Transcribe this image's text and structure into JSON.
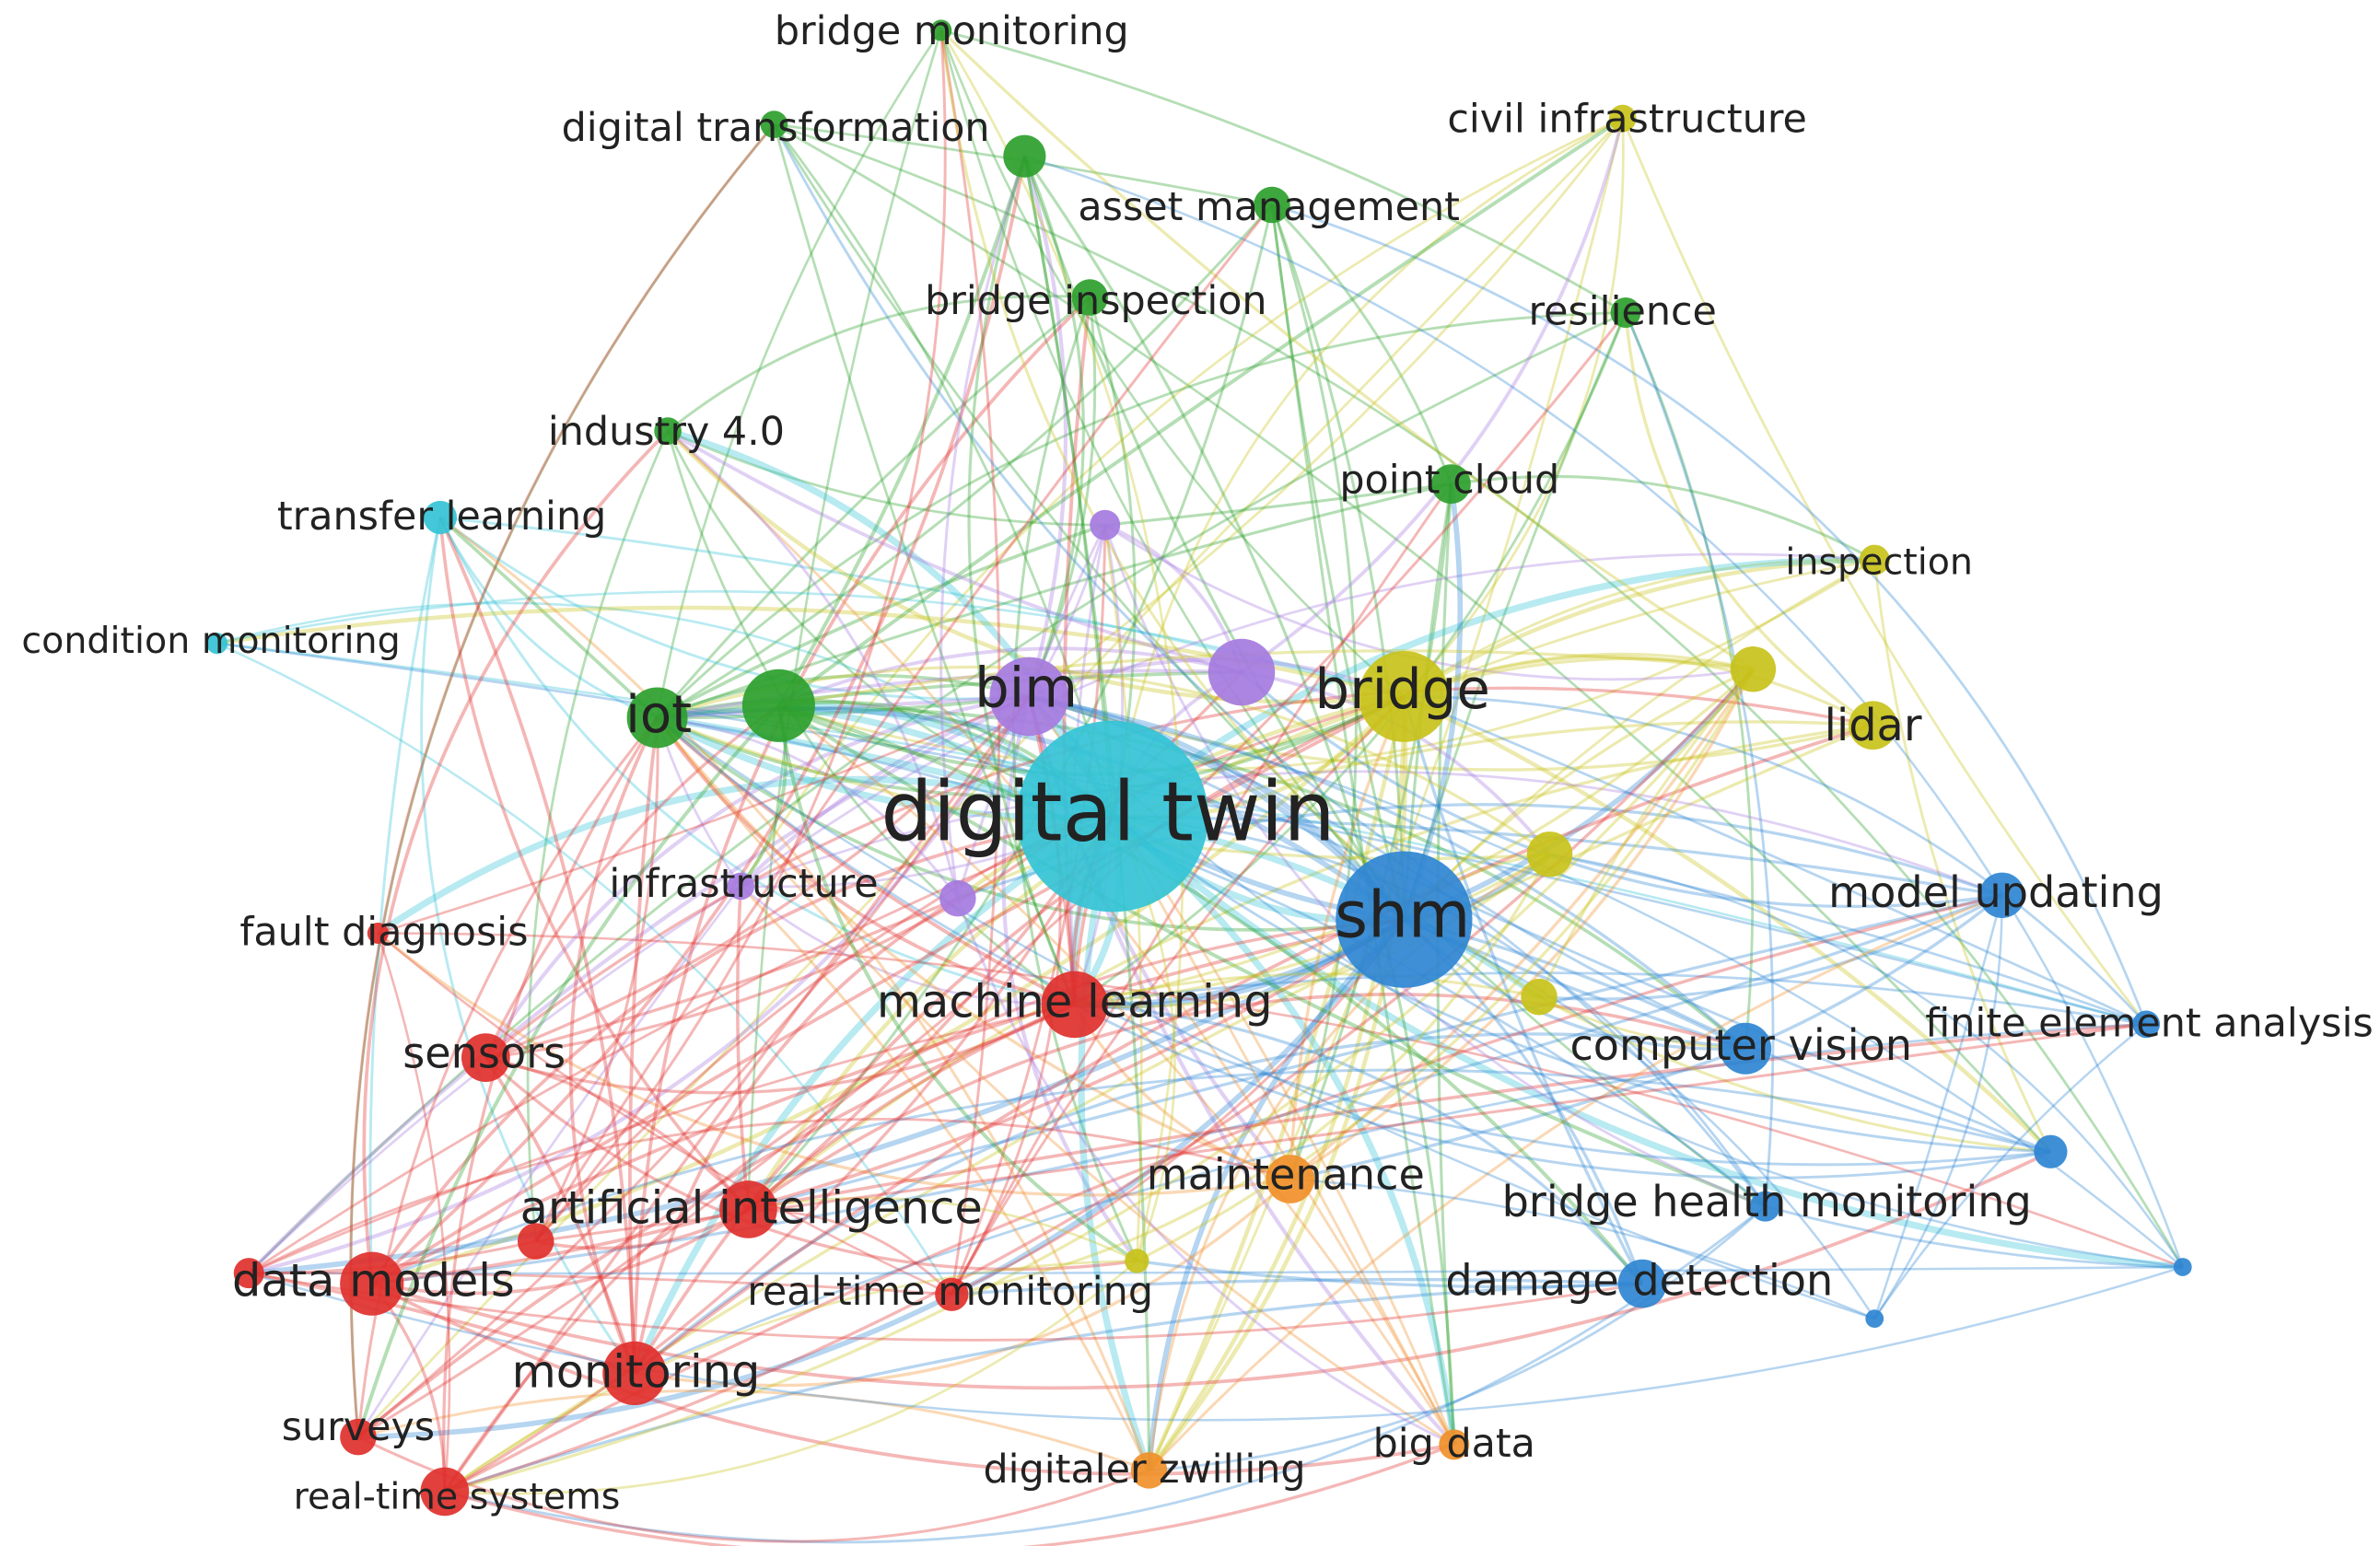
{
  "nodes": [
    {
      "label": "bridge monitoring"
    },
    {
      "label": "digital transformation"
    },
    {
      "label": "asset management"
    },
    {
      "label": "civil infrastructure"
    },
    {
      "label": "bridge inspection"
    },
    {
      "label": "resilience"
    },
    {
      "label": "industry 4.0"
    },
    {
      "label": "transfer learning"
    },
    {
      "label": "point cloud"
    },
    {
      "label": "inspection"
    },
    {
      "label": "condition monitoring"
    },
    {
      "label": "iot"
    },
    {
      "label": "bim"
    },
    {
      "label": "bridge"
    },
    {
      "label": "lidar"
    },
    {
      "label": "digital twin"
    },
    {
      "label": "infrastructure"
    },
    {
      "label": "shm"
    },
    {
      "label": "model updating"
    },
    {
      "label": "fault diagnosis"
    },
    {
      "label": "machine learning"
    },
    {
      "label": "sensors"
    },
    {
      "label": "finite element analysis"
    },
    {
      "label": "computer vision"
    },
    {
      "label": "maintenance"
    },
    {
      "label": "bridge health monitoring"
    },
    {
      "label": "artificial intelligence"
    },
    {
      "label": "data models"
    },
    {
      "label": "damage detection"
    },
    {
      "label": "real-time monitoring"
    },
    {
      "label": "monitoring"
    },
    {
      "label": "surveys"
    },
    {
      "label": "big data"
    },
    {
      "label": "digitaler zwilling"
    },
    {
      "label": "real-time systems"
    }
  ]
}
